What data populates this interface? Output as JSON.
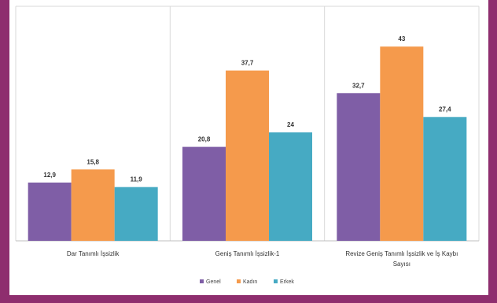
{
  "chart_data": {
    "type": "bar",
    "title": "",
    "xlabel": "",
    "ylabel": "",
    "ylim": [
      0,
      45
    ],
    "grid": false,
    "legend_position": "bottom",
    "categories": [
      [
        "Dar Tanımlı İşsizlik"
      ],
      [
        "Geniş Tanımlı İşsizlik-1"
      ],
      [
        "Revize Geniş Tanımlı İşsizlik ve İş Kaybı",
        "Sayısı"
      ]
    ],
    "series": [
      {
        "name": "Genel",
        "color": "#7f5ea6",
        "values": [
          12.9,
          20.8,
          32.7
        ],
        "labels": [
          "12,9",
          "20,8",
          "32,7"
        ]
      },
      {
        "name": "Kadın",
        "color": "#f59a4c",
        "values": [
          15.8,
          37.7,
          43
        ],
        "labels": [
          "15,8",
          "37,7",
          "43"
        ]
      },
      {
        "name": "Erkek",
        "color": "#46aac3",
        "values": [
          11.9,
          24,
          27.4
        ],
        "labels": [
          "11,9",
          "24",
          "27,4"
        ]
      }
    ]
  }
}
